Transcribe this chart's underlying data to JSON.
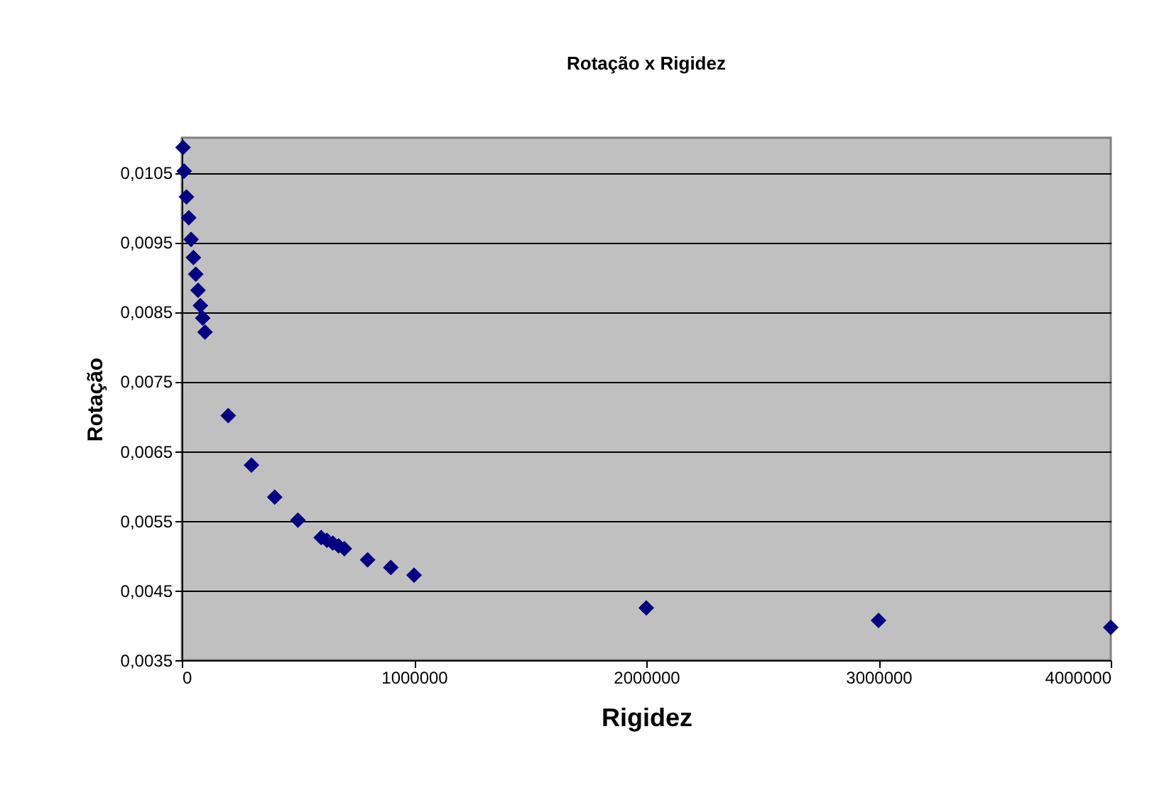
{
  "chart_data": {
    "type": "scatter",
    "title": "Rotação x Rigidez",
    "xlabel": "Rigidez",
    "ylabel": "Rotação",
    "x": [
      5000,
      10000,
      20000,
      30000,
      40000,
      50000,
      60000,
      70000,
      80000,
      90000,
      100000,
      200000,
      300000,
      400000,
      500000,
      600000,
      625000,
      650000,
      675000,
      700000,
      800000,
      900000,
      1000000,
      2000000,
      3000000,
      4000000
    ],
    "series": [
      {
        "color": "#000080",
        "values": [
          0.01086,
          0.01052,
          0.01015,
          0.00985,
          0.00954,
          0.00928,
          0.00904,
          0.00881,
          0.00859,
          0.00841,
          0.00821,
          0.00701,
          0.0063,
          0.00584,
          0.00551,
          0.00526,
          0.00522,
          0.00518,
          0.00514,
          0.0051,
          0.00494,
          0.00483,
          0.00472,
          0.00425,
          0.00407,
          0.00397
        ]
      }
    ],
    "xlim": [
      0,
      4000000
    ],
    "xticks": [
      0,
      1000000,
      2000000,
      3000000,
      4000000
    ],
    "ylim": [
      0.0035,
      0.011
    ],
    "yticks": [
      {
        "value": 0.0035,
        "label": "0,0035"
      },
      {
        "value": 0.0045,
        "label": "0,0045"
      },
      {
        "value": 0.0055,
        "label": "0,0055"
      },
      {
        "value": 0.0065,
        "label": "0,0065"
      },
      {
        "value": 0.0075,
        "label": "0,0075"
      },
      {
        "value": 0.0085,
        "label": "0,0085"
      },
      {
        "value": 0.0095,
        "label": "0,0095"
      },
      {
        "value": 0.0105,
        "label": "0,0105"
      }
    ],
    "grid": "y",
    "marker": "diamond"
  }
}
